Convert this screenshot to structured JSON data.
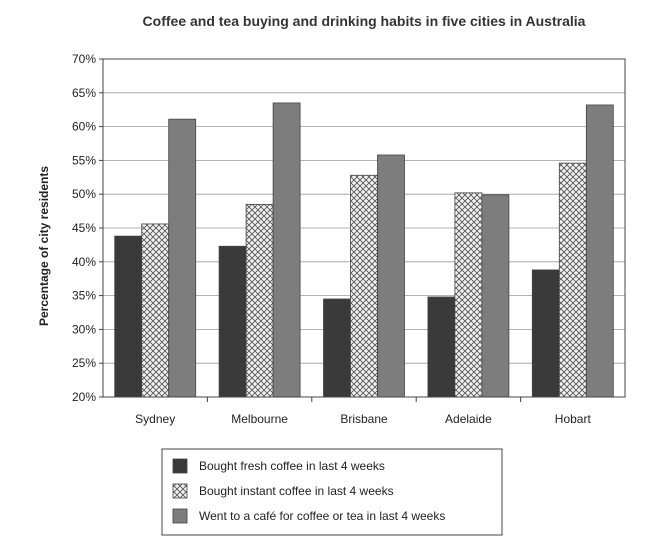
{
  "chart_data": {
    "type": "bar",
    "title": "Coffee and tea buying and drinking habits in five cities in Australia",
    "xlabel": "",
    "ylabel": "Percentage of city residents",
    "ylim": [
      20,
      70
    ],
    "y_ticks": [
      "20%",
      "25%",
      "30%",
      "35%",
      "40%",
      "45%",
      "50%",
      "55%",
      "60%",
      "65%",
      "70%"
    ],
    "y_tick_values": [
      20,
      25,
      30,
      35,
      40,
      45,
      50,
      55,
      60,
      65,
      70
    ],
    "grid": true,
    "legend_position": "bottom",
    "categories": [
      "Sydney",
      "Melbourne",
      "Brisbane",
      "Adelaide",
      "Hobart"
    ],
    "series": [
      {
        "name": "Bought fresh coffee in last 4 weeks",
        "values": [
          43.8,
          42.3,
          34.5,
          34.8,
          38.8
        ],
        "color": "#3a3a3a",
        "pattern": "solid"
      },
      {
        "name": "Bought instant coffee in last 4 weeks",
        "values": [
          45.6,
          48.5,
          52.8,
          50.2,
          54.6
        ],
        "color": "#e2e2e2",
        "pattern": "crosshatch"
      },
      {
        "name": "Went to a café for coffee or tea in last 4 weeks",
        "values": [
          61.1,
          63.5,
          55.8,
          49.9,
          63.2
        ],
        "color": "#7d7d7d",
        "pattern": "solid"
      }
    ]
  }
}
